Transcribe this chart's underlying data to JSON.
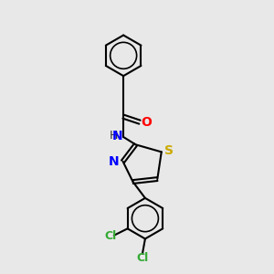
{
  "background_color": "#e8e8e8",
  "bond_color": "#000000",
  "atom_colors": {
    "O": "#ff0000",
    "N": "#0000ff",
    "S": "#ccaa00",
    "Cl": "#33aa33",
    "H": "#333333",
    "C": "#000000"
  },
  "font_size": 9,
  "figsize": [
    3.0,
    3.0
  ],
  "dpi": 100
}
